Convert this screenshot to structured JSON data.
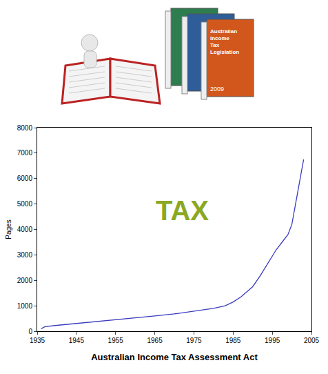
{
  "chart_data": {
    "type": "line",
    "x": [
      1936,
      1937,
      1940,
      1945,
      1950,
      1955,
      1960,
      1965,
      1970,
      1975,
      1980,
      1983,
      1985,
      1987,
      1990,
      1992,
      1994,
      1996,
      1998,
      1999,
      2000,
      2001,
      2002,
      2003
    ],
    "values": [
      100,
      180,
      230,
      300,
      380,
      450,
      520,
      600,
      680,
      780,
      900,
      1000,
      1150,
      1350,
      1750,
      2200,
      2700,
      3200,
      3600,
      3800,
      4200,
      5000,
      5900,
      6750
    ],
    "color": "#3b3bbf",
    "xlim": [
      1935,
      2005
    ],
    "xticks": [
      1935,
      1945,
      1955,
      1965,
      1975,
      1985,
      1995,
      2005
    ],
    "ylim": [
      0,
      8000
    ],
    "yticks": [
      0,
      1000,
      2000,
      3000,
      4000,
      5000,
      6000,
      7000,
      8000
    ],
    "y_label": "Pages",
    "x_label": "Australian Income Tax Assessment Act",
    "annotations": [
      {
        "text": "TAX",
        "x": 1972,
        "y": 4750,
        "color": "#8aa822"
      }
    ],
    "grid": false
  },
  "illustration": {
    "book_title": "Australian Income Tax Legislation",
    "book_year": "2009"
  }
}
